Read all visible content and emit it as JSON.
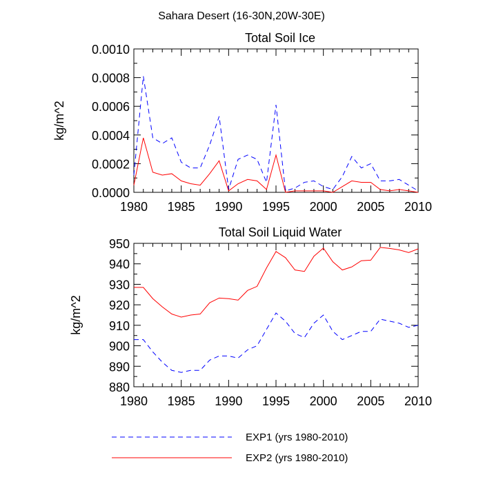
{
  "figure_title": "Sahara Desert (16-30N,20W-30E)",
  "legend": {
    "placement": "bottom",
    "entries": [
      {
        "label": "EXP1 (yrs 1980-2010)",
        "color": "#0000ff",
        "dash": "dashed"
      },
      {
        "label": "EXP2 (yrs 1980-2010)",
        "color": "#ff0000",
        "dash": "solid"
      }
    ]
  },
  "chart_data": [
    {
      "type": "line",
      "title": "Total Soil Ice",
      "xlabel": "",
      "ylabel": "kg/m^2",
      "xlim": [
        1980,
        2010
      ],
      "ylim": [
        0,
        0.001
      ],
      "xticks": [
        1980,
        1985,
        1990,
        1995,
        2000,
        2005,
        2010
      ],
      "xtick_labels": [
        "1980",
        "1985",
        "1990",
        "1995",
        "2000",
        "2005",
        "2010"
      ],
      "yticks": [
        0,
        0.0002,
        0.0004,
        0.0006,
        0.0008,
        0.001
      ],
      "ytick_labels": [
        "0.0000",
        "0.0002",
        "0.0004",
        "0.0006",
        "0.0008",
        "0.0010"
      ],
      "grid": false,
      "x": [
        1980,
        1981,
        1982,
        1983,
        1984,
        1985,
        1986,
        1987,
        1988,
        1989,
        1990,
        1991,
        1992,
        1993,
        1994,
        1995,
        1996,
        1997,
        1998,
        1999,
        2000,
        2001,
        2002,
        2003,
        2004,
        2005,
        2006,
        2007,
        2008,
        2009,
        2010
      ],
      "series": [
        {
          "name": "EXP1 (yrs 1980-2010)",
          "color": "#0000ff",
          "dash": "dashed",
          "values": [
            0.00012,
            0.00081,
            0.00038,
            0.00034,
            0.00038,
            0.00021,
            0.00017,
            0.00017,
            0.00033,
            0.00053,
            2e-05,
            0.00023,
            0.00026,
            0.00023,
            7e-05,
            0.00061,
            1e-05,
            3e-05,
            7e-05,
            8e-05,
            4e-05,
            2e-05,
            0.00011,
            0.00025,
            0.00017,
            0.0002,
            8e-05,
            8e-05,
            9e-05,
            5e-05,
            1e-05
          ]
        },
        {
          "name": "EXP2 (yrs 1980-2010)",
          "color": "#ff0000",
          "dash": "solid",
          "values": [
            5e-05,
            0.00038,
            0.00014,
            0.00012,
            0.00013,
            8e-05,
            6e-05,
            5e-05,
            0.00013,
            0.00022,
            1e-05,
            6e-05,
            9e-05,
            8e-05,
            2e-05,
            0.00026,
            0.0,
            1e-05,
            1e-05,
            1e-05,
            1e-05,
            0.0,
            4e-05,
            8e-05,
            7e-05,
            7e-05,
            2e-05,
            1e-05,
            2e-05,
            1e-05,
            0.0
          ]
        }
      ]
    },
    {
      "type": "line",
      "title": "Total Soil Liquid Water",
      "xlabel": "",
      "ylabel": "kg/m^2",
      "xlim": [
        1980,
        2010
      ],
      "ylim": [
        880,
        950
      ],
      "xticks": [
        1980,
        1985,
        1990,
        1995,
        2000,
        2005,
        2010
      ],
      "xtick_labels": [
        "1980",
        "1985",
        "1990",
        "1995",
        "2000",
        "2005",
        "2010"
      ],
      "yticks": [
        880,
        890,
        900,
        910,
        920,
        930,
        940,
        950
      ],
      "ytick_labels": [
        "880",
        "890",
        "900",
        "910",
        "920",
        "930",
        "940",
        "950"
      ],
      "grid": false,
      "x": [
        1980,
        1981,
        1982,
        1983,
        1984,
        1985,
        1986,
        1987,
        1988,
        1989,
        1990,
        1991,
        1992,
        1993,
        1994,
        1995,
        1996,
        1997,
        1998,
        1999,
        2000,
        2001,
        2002,
        2003,
        2004,
        2005,
        2006,
        2007,
        2008,
        2009,
        2010
      ],
      "series": [
        {
          "name": "EXP1 (yrs 1980-2010)",
          "color": "#0000ff",
          "dash": "dashed",
          "values": [
            903,
            903,
            897,
            892,
            888,
            887,
            888,
            888,
            893,
            895,
            895,
            894,
            898,
            900,
            908,
            916,
            912,
            906,
            904,
            911,
            915,
            907,
            903,
            905,
            907,
            907,
            913,
            912,
            911,
            909,
            910
          ]
        },
        {
          "name": "EXP2 (yrs 1980-2010)",
          "color": "#ff0000",
          "dash": "solid",
          "values": [
            928.5,
            928.5,
            923,
            919,
            915.5,
            914,
            915,
            915.5,
            921,
            923.3,
            923,
            922.3,
            927,
            929,
            938,
            946,
            943,
            937,
            936.3,
            943.7,
            947.7,
            941,
            937,
            938.5,
            941.5,
            941.8,
            948,
            947.5,
            946.8,
            945.5,
            947.3
          ]
        }
      ]
    }
  ]
}
